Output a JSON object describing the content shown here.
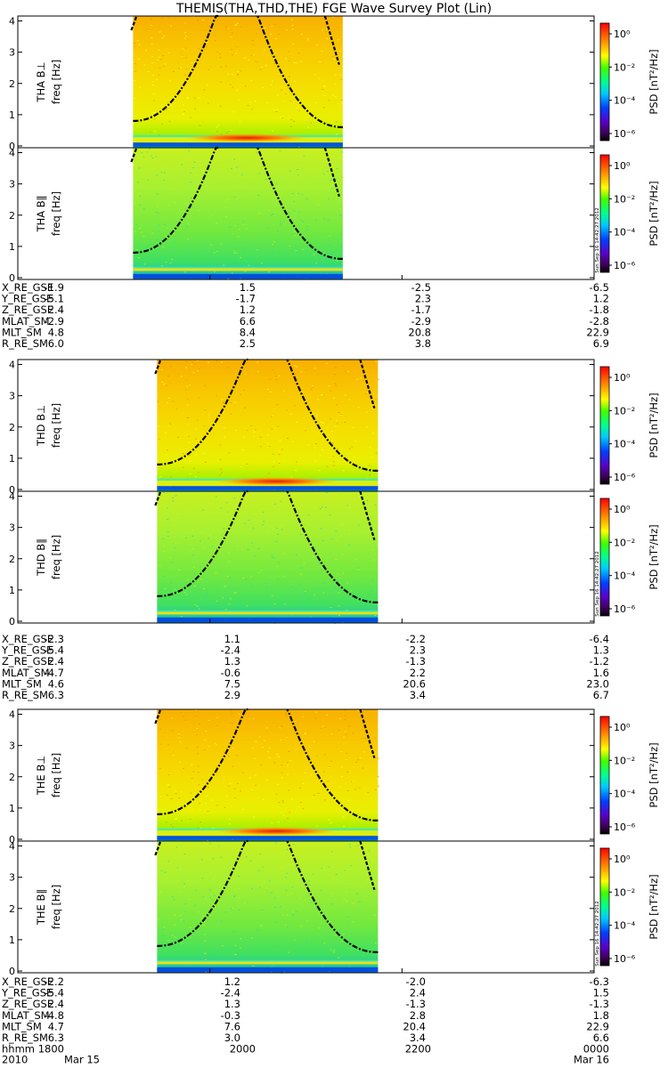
{
  "title": "THEMIS(THA,THD,THE) FGE Wave Survey Plot (Lin)",
  "stamp": "Sun Sep 16 14:42:27 2012",
  "chart_data": {
    "type": "heatmap",
    "ylabel_unit": "freq [Hz]",
    "ylim": [
      0,
      4.1
    ],
    "yticks": [
      "0",
      "1",
      "2",
      "3",
      "4"
    ],
    "colorbar": {
      "label": "PSD [nT²/Hz]",
      "scale": "log",
      "ticks": [
        "10⁰",
        "10⁻²",
        "10⁻⁴",
        "10⁻⁶"
      ]
    },
    "probes": [
      {
        "probe": "THA",
        "panels": [
          {
            "label": "THA B⊥",
            "component": "perp"
          },
          {
            "label": "THA B∥",
            "component": "par"
          }
        ],
        "ephemeris": {
          "X_RE_GSE": [
            "-1.9",
            "1.5",
            "-2.5",
            "-6.5"
          ],
          "Y_RE_GSE": [
            "-5.1",
            "-1.7",
            "2.3",
            "1.2"
          ],
          "Z_RE_GSE": [
            "2.4",
            "1.2",
            "-1.7",
            "-1.8"
          ],
          "MLAT_SM": [
            "-2.9",
            "6.6",
            "-2.9",
            "-2.8"
          ],
          "MLT_SM": [
            "4.8",
            "8.4",
            "20.8",
            "22.9"
          ],
          "R_RE_SM": [
            "6.0",
            "2.5",
            "3.8",
            "6.9"
          ]
        }
      },
      {
        "probe": "THD",
        "panels": [
          {
            "label": "THD B⊥",
            "component": "perp"
          },
          {
            "label": "THD B∥",
            "component": "par"
          }
        ],
        "ephemeris": {
          "X_RE_GSE": [
            "-2.3",
            "1.1",
            "-2.2",
            "-6.4"
          ],
          "Y_RE_GSE": [
            "-5.4",
            "-2.4",
            "2.3",
            "1.3"
          ],
          "Z_RE_GSE": [
            "2.4",
            "1.3",
            "-1.3",
            "-1.2"
          ],
          "MLAT_SM": [
            "-4.7",
            "-0.6",
            "2.2",
            "1.6"
          ],
          "MLT_SM": [
            "4.6",
            "7.5",
            "20.6",
            "23.0"
          ],
          "R_RE_SM": [
            "6.3",
            "2.9",
            "3.4",
            "6.7"
          ]
        }
      },
      {
        "probe": "THE",
        "panels": [
          {
            "label": "THE B⊥",
            "component": "perp"
          },
          {
            "label": "THE B∥",
            "component": "par"
          }
        ],
        "ephemeris": {
          "X_RE_GSE": [
            "-2.2",
            "1.2",
            "-2.0",
            "-6.3"
          ],
          "Y_RE_GSE": [
            "-5.4",
            "-2.4",
            "2.4",
            "1.5"
          ],
          "Z_RE_GSE": [
            "2.4",
            "1.3",
            "-1.3",
            "-1.3"
          ],
          "MLAT_SM": [
            "-4.8",
            "-0.3",
            "2.8",
            "1.8"
          ],
          "MLT_SM": [
            "4.7",
            "7.6",
            "20.4",
            "22.9"
          ],
          "R_RE_SM": [
            "6.3",
            "3.0",
            "3.4",
            "6.6"
          ]
        }
      }
    ],
    "eph_row_names": [
      "X_RE_GSE",
      "Y_RE_GSE",
      "Z_RE_GSE",
      "MLAT_SM",
      "MLT_SM",
      "R_RE_SM"
    ],
    "time_axis": {
      "row_label": "hhmm",
      "ticks": [
        "1800",
        "2000",
        "2200",
        "0000"
      ],
      "year": "2010",
      "start_date": "Mar 15",
      "end_date": "Mar 16"
    },
    "data_coverage_hhmm": [
      {
        "probe": "THA",
        "start": "1912",
        "end": "2123"
      },
      {
        "probe": "THD",
        "start": "1927",
        "end": "2145"
      },
      {
        "probe": "THE",
        "start": "1927",
        "end": "2145"
      }
    ]
  }
}
